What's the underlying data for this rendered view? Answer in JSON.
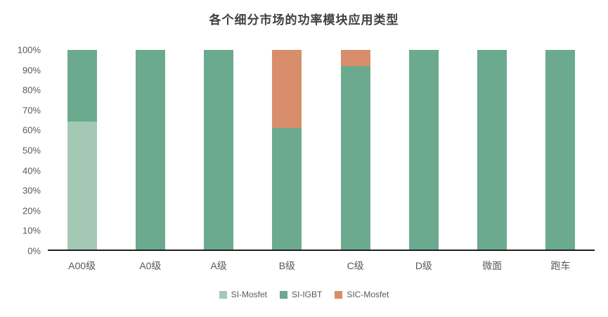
{
  "title": "各个细分市场的功率模块应用类型",
  "chart_data": {
    "type": "bar",
    "stacked": true,
    "stacked_mode": "percent",
    "title": "各个细分市场的功率模块应用类型",
    "categories": [
      "A00级",
      "A0级",
      "A级",
      "B级",
      "C级",
      "D级",
      "微面",
      "跑车"
    ],
    "series": [
      {
        "name": "SI-Mosfet",
        "color": "#a5c8b5",
        "values": [
          64,
          0,
          0,
          0,
          0,
          0,
          0,
          0
        ]
      },
      {
        "name": "SI-IGBT",
        "color": "#6baa8f",
        "values": [
          36,
          100,
          100,
          61,
          92,
          100,
          100,
          100
        ]
      },
      {
        "name": "SIC-Mosfet",
        "color": "#d88d6b",
        "values": [
          0,
          0,
          0,
          39,
          8,
          0,
          0,
          0
        ]
      }
    ],
    "xlabel": "",
    "ylabel": "",
    "ylim": [
      0,
      100
    ],
    "yticks": [
      "0%",
      "10%",
      "20%",
      "30%",
      "40%",
      "50%",
      "60%",
      "70%",
      "80%",
      "90%",
      "100%"
    ],
    "grid": false,
    "legend_position": "bottom"
  }
}
